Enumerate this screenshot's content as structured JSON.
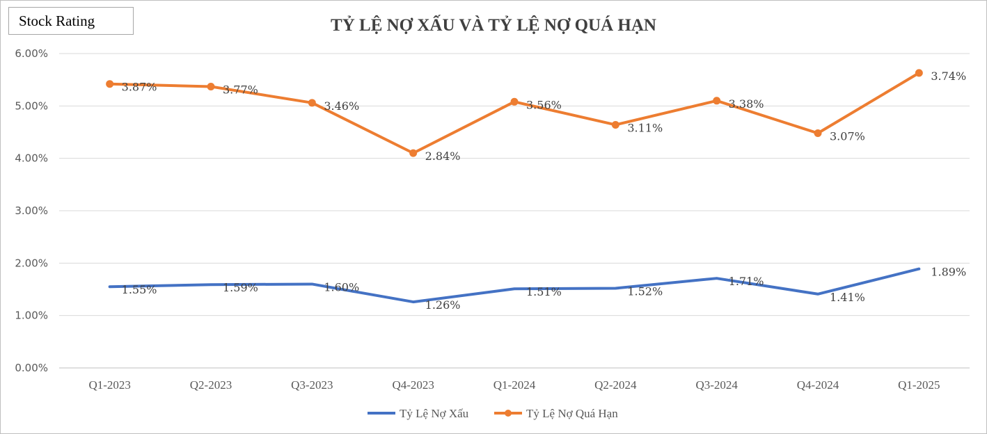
{
  "badge": {
    "label": "Stock Rating"
  },
  "chart_data": {
    "type": "line",
    "title": "TỶ LỆ NỢ XẤU VÀ TỶ LỆ NỢ QUÁ HẠN",
    "categories": [
      "Q1-2023",
      "Q2-2023",
      "Q3-2023",
      "Q4-2023",
      "Q1-2024",
      "Q2-2024",
      "Q3-2024",
      "Q4-2024",
      "Q1-2025"
    ],
    "ylim": [
      0,
      6
    ],
    "yticks": [
      0,
      1,
      2,
      3,
      4,
      5,
      6
    ],
    "ytick_labels": [
      "0.00%",
      "1.00%",
      "2.00%",
      "3.00%",
      "4.00%",
      "5.00%",
      "6.00%"
    ],
    "grid": true,
    "legend_position": "bottom",
    "series": [
      {
        "name": "Tỷ Lệ Nợ Xấu",
        "color": "#4472C4",
        "markers": false,
        "values": [
          1.55,
          1.59,
          1.6,
          1.26,
          1.51,
          1.52,
          1.71,
          1.41,
          1.89
        ],
        "data_labels": [
          "1.55%",
          "1.59%",
          "1.60%",
          "1.26%",
          "1.51%",
          "1.52%",
          "1.71%",
          "1.41%",
          "1.89%"
        ]
      },
      {
        "name": "Tỷ Lệ Nợ Quá Hạn",
        "color": "#ED7D31",
        "markers": true,
        "values": [
          5.42,
          5.37,
          5.06,
          4.1,
          5.08,
          4.64,
          5.1,
          4.48,
          5.63
        ],
        "data_labels": [
          "3.87%",
          "3.77%",
          "3.46%",
          "2.84%",
          "3.56%",
          "3.11%",
          "3.38%",
          "3.07%",
          "3.74%"
        ]
      }
    ]
  }
}
